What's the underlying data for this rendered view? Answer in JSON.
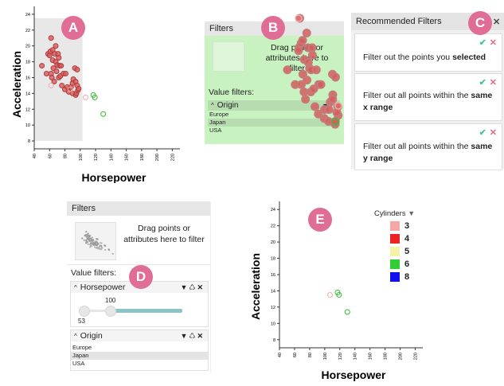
{
  "badges": {
    "a": "A",
    "b": "B",
    "c": "C",
    "d": "D",
    "e": "E"
  },
  "colors": {
    "badge": "#e06d96",
    "point_red_fill": "#d85a5a",
    "point_red_stroke": "#b03a3a",
    "point_green": "#33bb33",
    "point_pink": "#f4a8a8",
    "grey_region": "#e8e8e8",
    "drop_zone_green": "#c8f2c0",
    "slider_track": "#8cc2c8",
    "confirm": "#4cc3a0",
    "reject": "#e06d7c"
  },
  "scatter_a": {
    "xlabel": "Horsepower",
    "ylabel": "Acceleration",
    "xticks": [
      "40",
      "60",
      "80",
      "100",
      "120",
      "140",
      "160",
      "180",
      "200",
      "220"
    ],
    "yticks": [
      "8",
      "10",
      "12",
      "14",
      "16",
      "18",
      "20",
      "22",
      "24"
    ],
    "selected_x_range": [
      40,
      103
    ],
    "selected_y_range": [
      8,
      23.5
    ],
    "chart_data": {
      "type": "scatter",
      "xlim": [
        40,
        230
      ],
      "ylim": [
        7,
        25
      ],
      "series": [
        {
          "color": "#d85a5a",
          "points": [
            [
              50,
              17.5
            ],
            [
              56,
              16.5
            ],
            [
              58,
              19
            ],
            [
              60,
              18.8
            ],
            [
              61,
              19.3
            ],
            [
              62,
              21
            ],
            [
              62,
              16.5
            ],
            [
              63,
              16
            ],
            [
              64,
              19.5
            ],
            [
              64,
              18.2
            ],
            [
              65,
              17.2
            ],
            [
              66,
              15.5
            ],
            [
              67,
              19
            ],
            [
              68,
              20
            ],
            [
              68,
              18
            ],
            [
              69,
              16.8
            ],
            [
              70,
              17.6
            ],
            [
              71,
              19
            ],
            [
              72,
              16
            ],
            [
              72,
              18.5
            ],
            [
              73,
              17.5
            ],
            [
              74,
              16.2
            ],
            [
              75,
              17.5
            ],
            [
              76,
              15
            ],
            [
              78,
              16.5
            ],
            [
              80,
              14.5
            ],
            [
              81,
              16.5
            ],
            [
              83,
              14.8
            ],
            [
              85,
              14.2
            ],
            [
              88,
              14.8
            ],
            [
              90,
              14
            ],
            [
              90,
              15.3
            ],
            [
              91,
              15.8
            ],
            [
              93,
              17.2
            ],
            [
              94,
              13.8
            ],
            [
              94,
              15.5
            ],
            [
              95,
              14
            ],
            [
              96,
              15
            ],
            [
              96,
              17
            ],
            [
              97,
              14.4
            ],
            [
              98,
              14.6
            ]
          ]
        },
        {
          "color": "#f4a8a8",
          "points": [
            [
              107,
              13.5
            ],
            [
              62,
              15
            ],
            [
              87,
              14.5
            ]
          ]
        },
        {
          "color": "#33bb33",
          "points": [
            [
              117,
              13.8
            ],
            [
              119,
              13.5
            ],
            [
              130,
              11.4
            ]
          ]
        }
      ]
    }
  },
  "filters_b": {
    "title": "Filters",
    "drop_text": "Drag points or attributes here to filter",
    "value_filters_label": "Value filters:",
    "origin": {
      "label": "Origin",
      "items": [
        "Europe",
        "Japan",
        "USA"
      ],
      "selected": "Japan"
    }
  },
  "recommended": {
    "title": "Recommended Filters",
    "close": "✕",
    "cards": [
      {
        "text": "Filter out the points you ",
        "bold": "selected",
        "text2": ""
      },
      {
        "text": "Filter out all points within the ",
        "bold": "same",
        "text2": "x range"
      },
      {
        "text": "Filter out all points within the ",
        "bold": "same",
        "text2": "y range"
      }
    ],
    "confirm_icon": "✔",
    "reject_icon": "✕"
  },
  "filters_d": {
    "title": "Filters",
    "drop_text": "Drag points or attributes here to filter",
    "value_filters_label": "Value filters:",
    "horsepower": {
      "label": "Horsepower",
      "min_value": "53",
      "max_value": "100",
      "min_pos": 0.0,
      "max_pos": 0.28
    },
    "origin": {
      "label": "Origin",
      "items": [
        "Europe",
        "Japan",
        "USA"
      ],
      "selected": "Japan"
    }
  },
  "scatter_e": {
    "xlabel": "Horsepower",
    "ylabel": "Acceleration",
    "xticks": [
      "40",
      "60",
      "80",
      "100",
      "120",
      "140",
      "160",
      "180",
      "200",
      "220"
    ],
    "yticks": [
      "8",
      "10",
      "12",
      "14",
      "16",
      "18",
      "20",
      "22",
      "24"
    ],
    "legend_title": "Cylinders",
    "legend": [
      {
        "label": "3",
        "color": "#f4a8a8"
      },
      {
        "label": "4",
        "color": "#ee2222"
      },
      {
        "label": "5",
        "color": "#f2f2a8"
      },
      {
        "label": "6",
        "color": "#33cc33"
      },
      {
        "label": "8",
        "color": "#1111ee"
      }
    ],
    "chart_data": {
      "type": "scatter",
      "xlim": [
        40,
        230
      ],
      "ylim": [
        7,
        25
      ],
      "series": [
        {
          "color": "#f4a8a8",
          "points": [
            [
              107,
              13.5
            ]
          ]
        },
        {
          "color": "#33bb33",
          "points": [
            [
              117,
              13.8
            ],
            [
              119,
              13.5
            ],
            [
              130,
              11.4
            ]
          ]
        }
      ]
    }
  }
}
